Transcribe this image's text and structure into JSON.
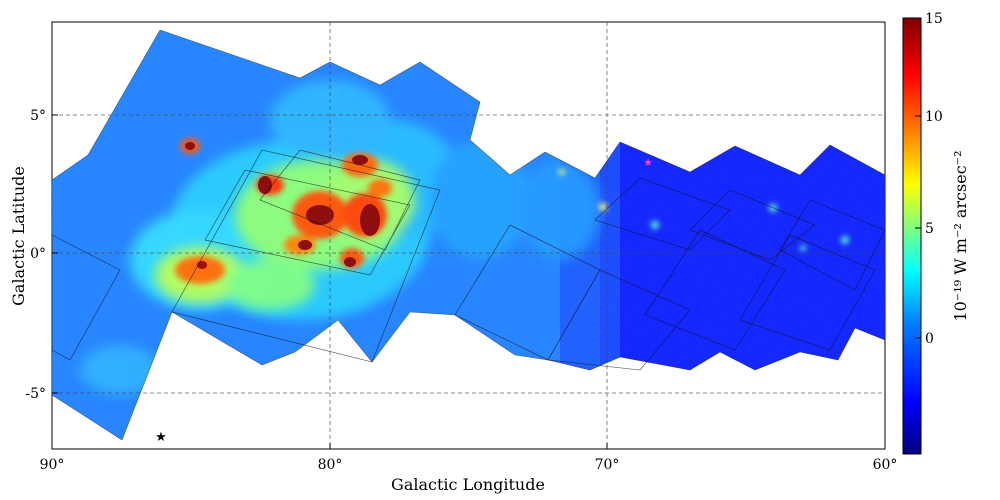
{
  "map": {
    "x_axis": {
      "title": "Galactic Longitude",
      "ticks": [
        {
          "value": 90,
          "label": "90°"
        },
        {
          "value": 80,
          "label": "80°"
        },
        {
          "value": 70,
          "label": "70°"
        },
        {
          "value": 60,
          "label": "60°"
        }
      ],
      "range": [
        90,
        60
      ]
    },
    "y_axis": {
      "title": "Galactic Latitude",
      "ticks": [
        {
          "value": 5,
          "label": "5°"
        },
        {
          "value": 0,
          "label": "0°"
        },
        {
          "value": -5,
          "label": "-5°"
        }
      ],
      "range": [
        -7,
        8.2
      ]
    },
    "colorbar": {
      "label": "10⁻¹⁹ W m⁻² arcsec⁻²",
      "ticks": [
        {
          "value": 15,
          "label": "15"
        },
        {
          "value": 10,
          "label": "10"
        },
        {
          "value": 5,
          "label": "5"
        },
        {
          "value": 0,
          "label": "0"
        }
      ],
      "range": [
        -4.5,
        15
      ],
      "colormap": [
        "#00007f",
        "#0000ff",
        "#007fff",
        "#00ffff",
        "#7fff7f",
        "#ffff00",
        "#ff7f00",
        "#ff0000",
        "#7f0000"
      ]
    },
    "grid": true,
    "background_color": "#1e7fff",
    "markers": [
      {
        "name": "black-star",
        "l": 86.2,
        "b": -6.5,
        "color": "#000000"
      },
      {
        "name": "pink-star",
        "l": 68.6,
        "b": 3.3,
        "color": "#ff3cc8"
      }
    ]
  }
}
